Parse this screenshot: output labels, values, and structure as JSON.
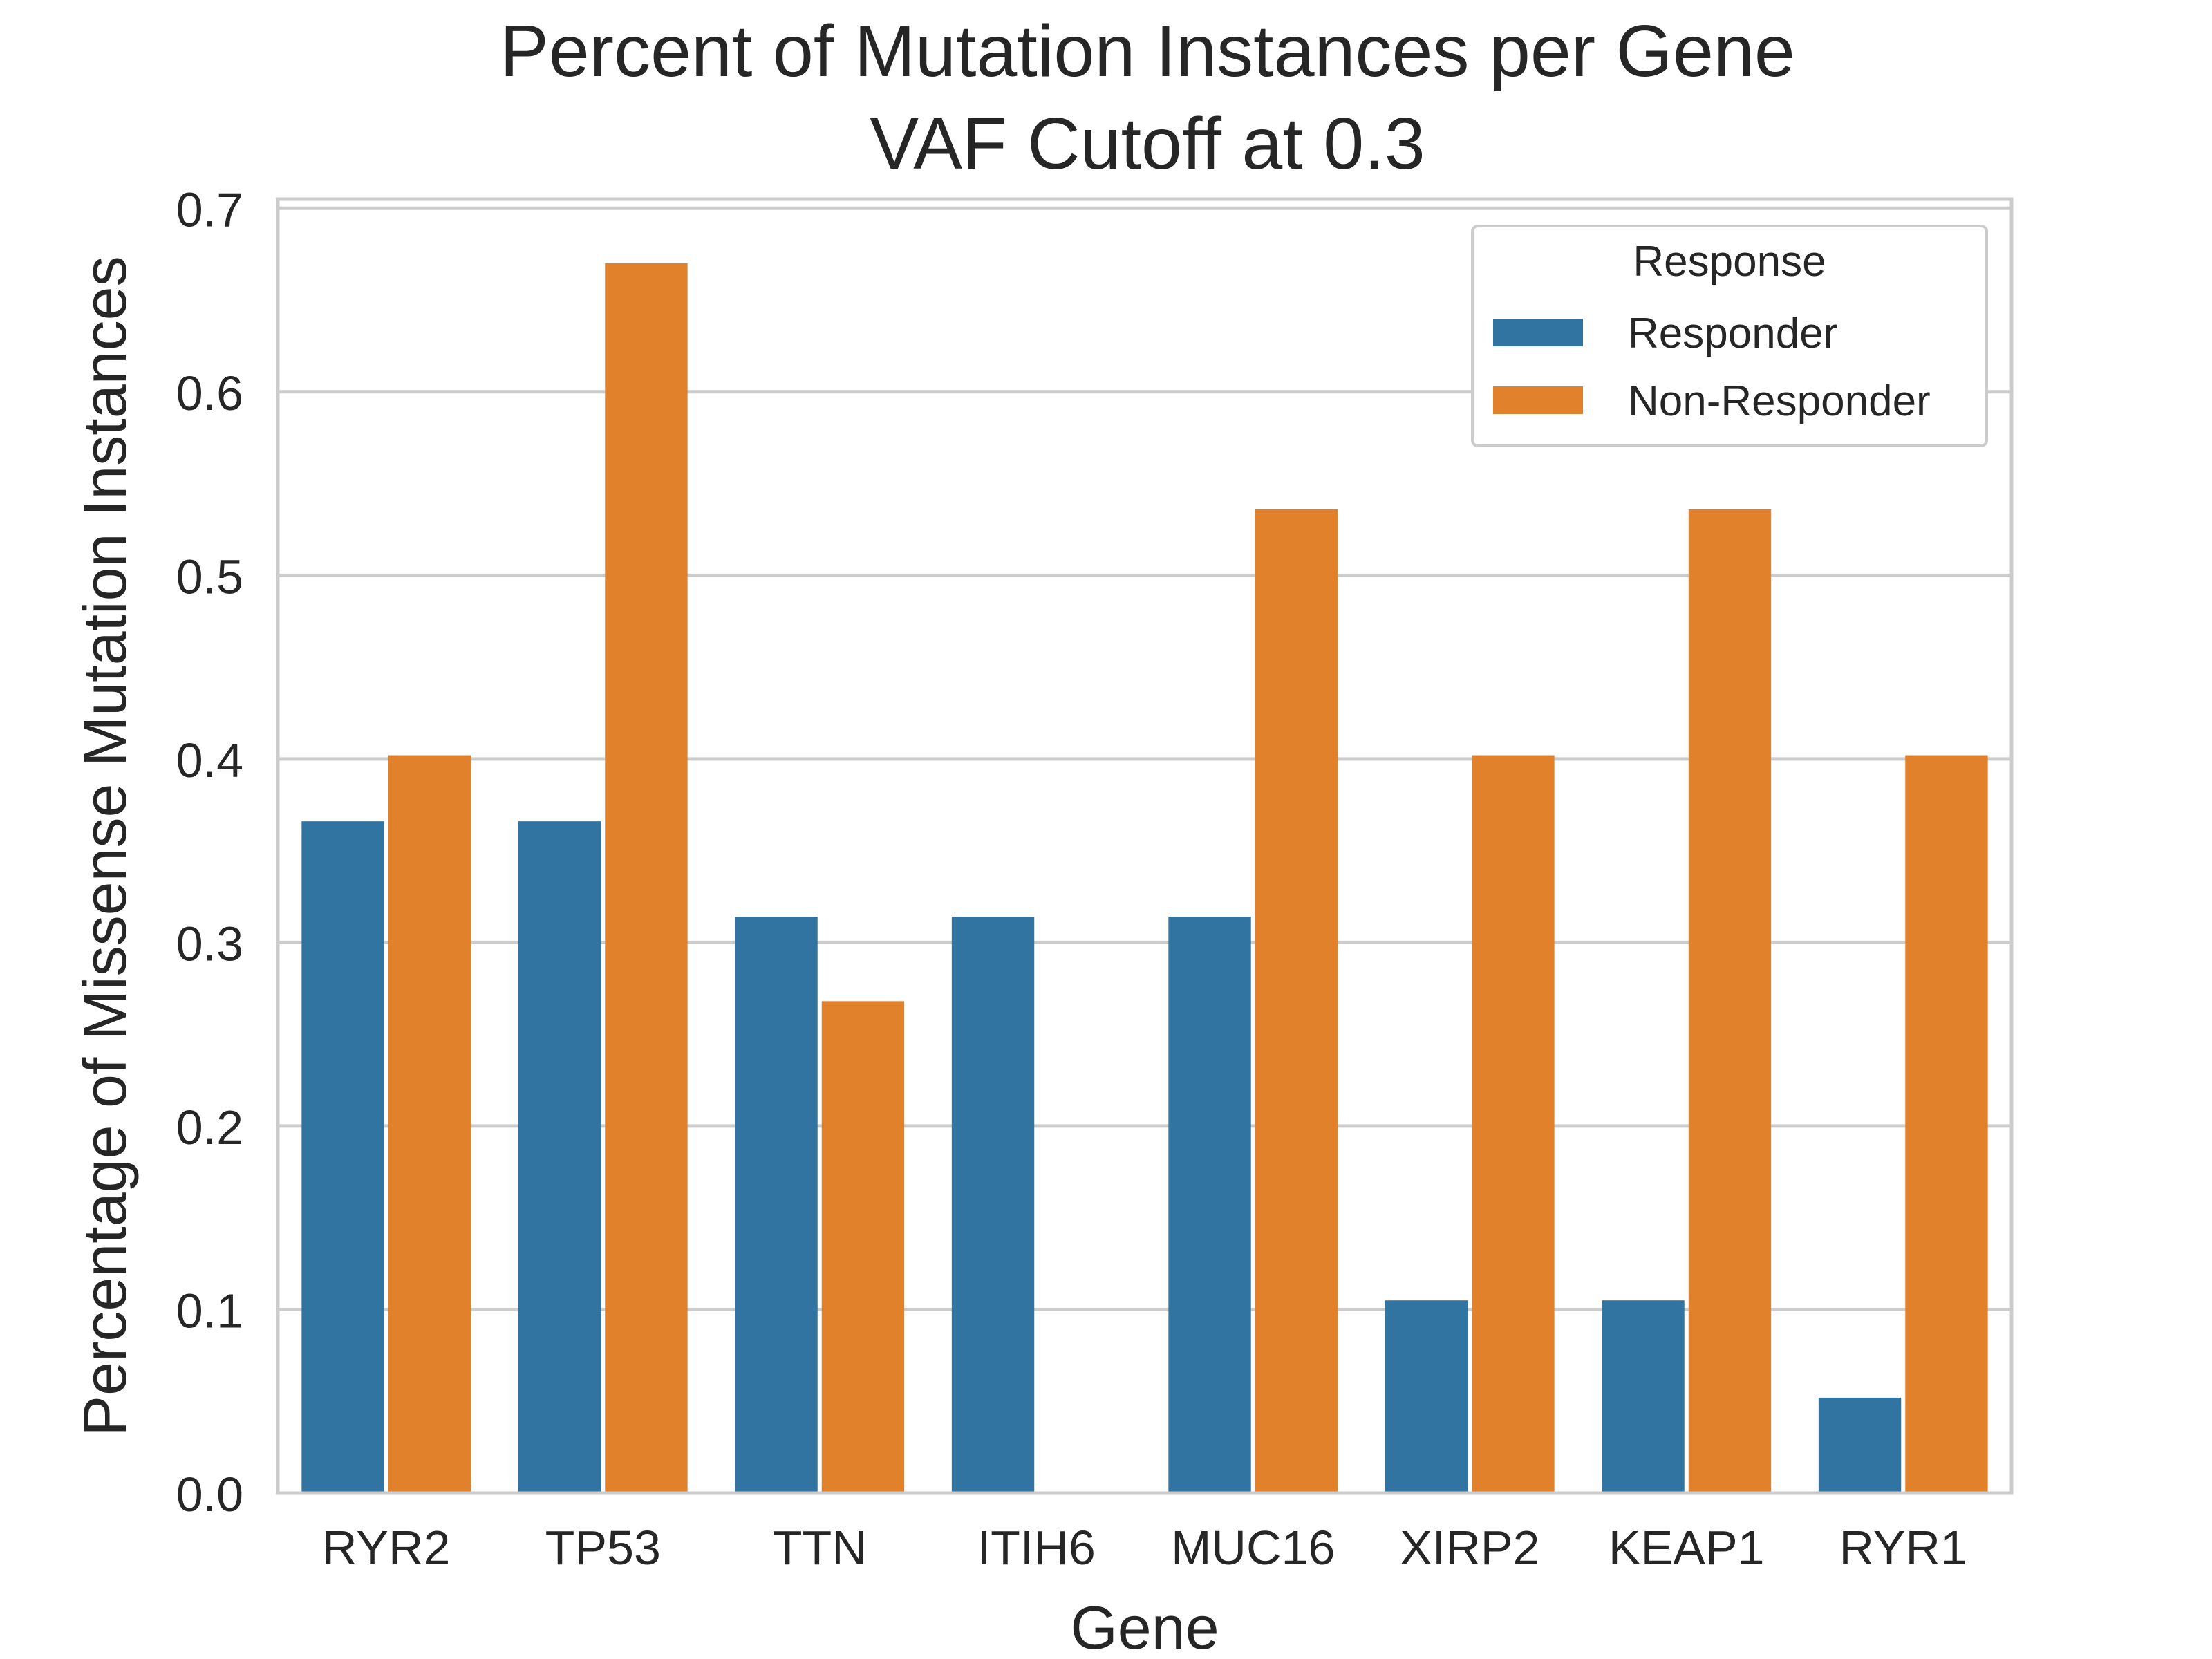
{
  "chart_data": {
    "type": "bar",
    "title": [
      "Percent of Mutation Instances per Gene",
      "VAF Cutoff at 0.3"
    ],
    "xlabel": "Gene",
    "ylabel": "Percentage of Missense Mutation Instances",
    "ylim": [
      0,
      0.705
    ],
    "yticks": [
      0.0,
      0.1,
      0.2,
      0.3,
      0.4,
      0.5,
      0.6,
      0.7
    ],
    "ytick_labels": [
      "0.0",
      "0.1",
      "0.2",
      "0.3",
      "0.4",
      "0.5",
      "0.6",
      "0.7"
    ],
    "grid": "horizontal",
    "categories": [
      "RYR2",
      "TP53",
      "TTN",
      "ITIH6",
      "MUC16",
      "XIRP2",
      "KEAP1",
      "RYR1"
    ],
    "series": [
      {
        "name": "Responder",
        "color": "#3274a1",
        "values": [
          0.366,
          0.366,
          0.314,
          0.314,
          0.314,
          0.105,
          0.105,
          0.052
        ]
      },
      {
        "name": "Non-Responder",
        "color": "#e1812c",
        "values": [
          0.402,
          0.67,
          0.268,
          0.0,
          0.536,
          0.402,
          0.536,
          0.402
        ]
      }
    ],
    "legend": {
      "title": "Response",
      "position": "top-right"
    }
  }
}
